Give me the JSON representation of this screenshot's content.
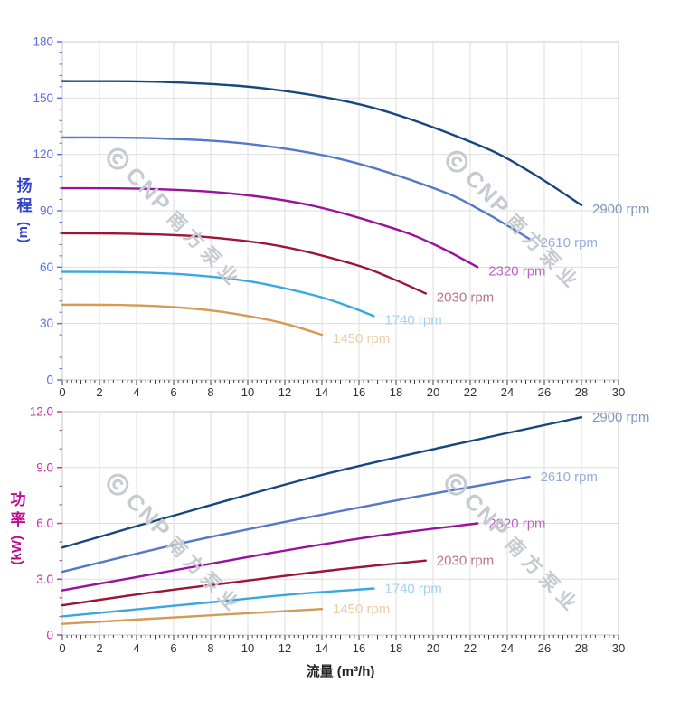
{
  "x_axis_title": "流量 (m³/h)",
  "watermark": {
    "cnp": "CNP",
    "cn": "南方泵业",
    "color": "#c6cad1"
  },
  "palette": {
    "grid": "#dedede",
    "plot_border": "#c9c9c9",
    "x_tick": "#3c3c3c",
    "x_tick_label": "#2f2f35",
    "flow_title": "#222226"
  },
  "chart_data": [
    {
      "type": "line",
      "name": "head-vs-flow",
      "ylabel": "扬程 (m)",
      "ylabel_chars": "扬程",
      "ylabel_unit": "(m)",
      "xlabel": "流量 (m³/h)",
      "xlim": [
        0,
        30
      ],
      "ylim": [
        0,
        180
      ],
      "grid": true,
      "x_tick_step": 2,
      "x_minor_step": 0.25,
      "x_tick_labels": [
        "0",
        "2",
        "4",
        "6",
        "8",
        "10",
        "12",
        "14",
        "16",
        "18",
        "20",
        "22",
        "24",
        "26",
        "28",
        "30"
      ],
      "y_tick_values": [
        0,
        30,
        60,
        90,
        120,
        150,
        180
      ],
      "y_tick_labels": [
        "0",
        "30",
        "60",
        "90",
        "120",
        "150",
        "180"
      ],
      "y_minor_step": 6,
      "axis_text_color": "#5a6ce6",
      "axis_title_color": "#3043cf",
      "legend_position": "curve-end-labels",
      "series": [
        {
          "name": "2900 rpm",
          "color": "#17477e",
          "label_color": "#7e97bc",
          "points": [
            [
              0,
              159
            ],
            [
              5.6,
              158.5
            ],
            [
              11.2,
              154.8
            ],
            [
              16.8,
              144.7
            ],
            [
              22.4,
              125.2
            ],
            [
              25.2,
              110.9
            ],
            [
              28,
              93
            ]
          ]
        },
        {
          "name": "2610 rpm",
          "color": "#5578c8",
          "label_color": "#95abde",
          "points": [
            [
              0,
              129
            ],
            [
              5,
              128.6
            ],
            [
              10.1,
              125.5
            ],
            [
              15.1,
              117.3
            ],
            [
              20.2,
              101.4
            ],
            [
              22.7,
              89.6
            ],
            [
              25.2,
              75
            ]
          ]
        },
        {
          "name": "2320 rpm",
          "color": "#9a119c",
          "label_color": "#ba63c3",
          "points": [
            [
              0,
              102
            ],
            [
              4.5,
              101.7
            ],
            [
              9,
              99.3
            ],
            [
              13.4,
              92.9
            ],
            [
              17.9,
              80.5
            ],
            [
              20.2,
              71.4
            ],
            [
              22.4,
              60
            ]
          ]
        },
        {
          "name": "2030 rpm",
          "color": "#9c1535",
          "label_color": "#b9758c",
          "points": [
            [
              0,
              78
            ],
            [
              3.9,
              77.7
            ],
            [
              7.8,
              76
            ],
            [
              11.8,
              71.1
            ],
            [
              15.7,
              61.6
            ],
            [
              17.6,
              54.7
            ],
            [
              19.6,
              46
            ]
          ]
        },
        {
          "name": "1740 rpm",
          "color": "#39a8e0",
          "label_color": "#a3d2ef",
          "points": [
            [
              0,
              57.5
            ],
            [
              3.4,
              57.3
            ],
            [
              6.7,
              56
            ],
            [
              10.1,
              52.4
            ],
            [
              13.4,
              45.5
            ],
            [
              15.1,
              40.4
            ],
            [
              16.8,
              34
            ]
          ]
        },
        {
          "name": "1450 rpm",
          "color": "#d39b55",
          "label_color": "#e9cda4",
          "points": [
            [
              0,
              40
            ],
            [
              2.8,
              39.9
            ],
            [
              5.6,
              39
            ],
            [
              8.4,
              36.5
            ],
            [
              11.2,
              31.8
            ],
            [
              12.6,
              28.3
            ],
            [
              14,
              24
            ]
          ]
        }
      ]
    },
    {
      "type": "line",
      "name": "power-vs-flow",
      "ylabel": "功率 (kW)",
      "ylabel_chars": "功率",
      "ylabel_unit": "(kW)",
      "xlabel": "流量 (m³/h)",
      "xlim": [
        0,
        30
      ],
      "ylim": [
        0,
        12
      ],
      "grid": true,
      "x_tick_step": 2,
      "x_minor_step": 0.25,
      "x_tick_labels": [
        "0",
        "2",
        "4",
        "6",
        "8",
        "10",
        "12",
        "14",
        "16",
        "18",
        "20",
        "22",
        "24",
        "26",
        "28",
        "30"
      ],
      "y_tick_values": [
        0,
        3,
        6,
        9,
        12
      ],
      "y_tick_labels": [
        "0",
        "3.0",
        "6.0",
        "9.0",
        "12.0"
      ],
      "y_minor_step": 1,
      "axis_text_color": "#c42da4",
      "axis_title_color": "#be0d92",
      "legend_position": "curve-end-labels",
      "series": [
        {
          "name": "2900 rpm",
          "color": "#17477e",
          "label_color": "#7e97bc",
          "points": [
            [
              0,
              4.7
            ],
            [
              7,
              6.7
            ],
            [
              14,
              8.6
            ],
            [
              21,
              10.2
            ],
            [
              28,
              11.7
            ]
          ]
        },
        {
          "name": "2610 rpm",
          "color": "#5578c8",
          "label_color": "#95abde",
          "points": [
            [
              0,
              3.4
            ],
            [
              6.3,
              4.9
            ],
            [
              12.6,
              6.2
            ],
            [
              18.9,
              7.4
            ],
            [
              25.2,
              8.5
            ]
          ]
        },
        {
          "name": "2320 rpm",
          "color": "#9a119c",
          "label_color": "#ba63c3",
          "points": [
            [
              0,
              2.4
            ],
            [
              5.6,
              3.4
            ],
            [
              11.2,
              4.4
            ],
            [
              16.8,
              5.3
            ],
            [
              22.4,
              6.0
            ]
          ]
        },
        {
          "name": "2030 rpm",
          "color": "#9c1535",
          "label_color": "#b9758c",
          "points": [
            [
              0,
              1.6
            ],
            [
              4.9,
              2.3
            ],
            [
              9.8,
              2.9
            ],
            [
              14.7,
              3.5
            ],
            [
              19.6,
              4.0
            ]
          ]
        },
        {
          "name": "1740 rpm",
          "color": "#39a8e0",
          "label_color": "#a3d2ef",
          "points": [
            [
              0,
              1.0
            ],
            [
              4.2,
              1.4
            ],
            [
              8.4,
              1.8
            ],
            [
              12.6,
              2.2
            ],
            [
              16.8,
              2.5
            ]
          ]
        },
        {
          "name": "1450 rpm",
          "color": "#d39b55",
          "label_color": "#e9cda4",
          "points": [
            [
              0,
              0.6
            ],
            [
              3.5,
              0.8
            ],
            [
              7,
              1.0
            ],
            [
              10.5,
              1.2
            ],
            [
              14,
              1.4
            ]
          ]
        }
      ]
    }
  ]
}
